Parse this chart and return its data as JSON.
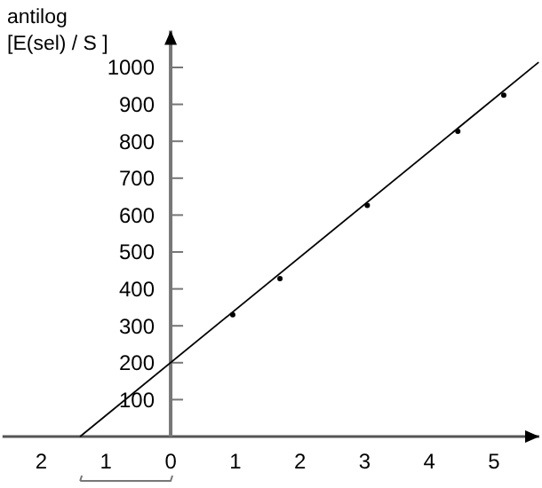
{
  "chart_data": {
    "type": "scatter",
    "ylabel": "antilog [E(sel) / S ]",
    "xlim": [
      -2.6,
      5.7
    ],
    "ylim": [
      0,
      1100
    ],
    "xticks": [
      {
        "value": -2,
        "label": "2"
      },
      {
        "value": -1,
        "label": "1"
      },
      0,
      1,
      2,
      3,
      4,
      5
    ],
    "yticks": [
      100,
      200,
      300,
      400,
      500,
      600,
      700,
      800,
      900,
      1000
    ],
    "grid": false,
    "series": [
      {
        "color": "#000000",
        "marker": "circle",
        "x": [
          0.96,
          1.69,
          3.04,
          4.44,
          5.15
        ],
        "values": [
          330,
          428,
          626,
          827,
          925
        ]
      },
      {
        "type": "line",
        "color": "#000000",
        "marker": "none",
        "line_style": "solid",
        "x": [
          -1.4,
          5.69
        ],
        "values": [
          0,
          1014
        ]
      }
    ]
  }
}
